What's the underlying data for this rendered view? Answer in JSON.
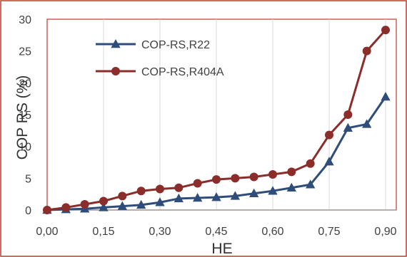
{
  "chart_data": {
    "type": "line",
    "title": "",
    "xlabel": "HE",
    "ylabel": "COP RS (%)",
    "xlim": [
      0,
      0.9
    ],
    "ylim": [
      0,
      30
    ],
    "grid": true,
    "legend_position": "top-left",
    "x_tick_labels": [
      "0,00",
      "0,15",
      "0,30",
      "0,45",
      "0,60",
      "0,75",
      "0,90"
    ],
    "y_tick_labels": [
      "0",
      "5",
      "10",
      "15",
      "20",
      "25",
      "30"
    ],
    "y_tick_values": [
      0,
      5,
      10,
      15,
      20,
      25,
      30
    ],
    "x_tick_values": [
      0,
      0.15,
      0.3,
      0.45,
      0.6,
      0.75,
      0.9
    ],
    "x": [
      0.0,
      0.05,
      0.1,
      0.15,
      0.2,
      0.25,
      0.3,
      0.35,
      0.4,
      0.45,
      0.5,
      0.55,
      0.6,
      0.65,
      0.7,
      0.75,
      0.8,
      0.85,
      0.9
    ],
    "series": [
      {
        "name": "COP-RS,R22",
        "color": "#2e4d7b",
        "marker": "triangle",
        "values": [
          0.0,
          0.1,
          0.2,
          0.4,
          0.6,
          0.8,
          1.2,
          1.8,
          1.9,
          2.0,
          2.2,
          2.6,
          3.0,
          3.5,
          4.0,
          7.6,
          12.9,
          13.5,
          17.8
        ]
      },
      {
        "name": "COP-RS,R404A",
        "color": "#8b2d2b",
        "marker": "circle",
        "values": [
          0.0,
          0.4,
          0.9,
          1.4,
          2.2,
          3.0,
          3.3,
          3.5,
          4.2,
          4.8,
          5.0,
          5.2,
          5.6,
          6.0,
          7.3,
          11.8,
          15.0,
          25.0,
          28.3
        ]
      }
    ]
  }
}
